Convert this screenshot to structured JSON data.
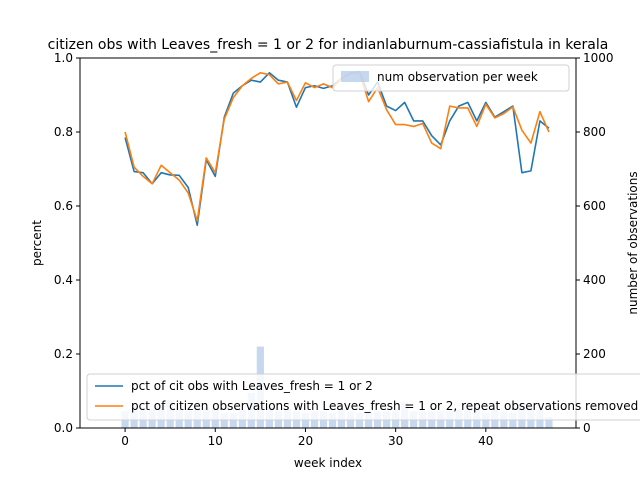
{
  "chart_data": {
    "type": "line",
    "title": "citizen obs with Leaves_fresh = 1 or 2 for indianlaburnum-cassiafistula in kerala",
    "xlabel": "week index",
    "ylabel": "percent",
    "y2label": "number of observations",
    "xlim": [
      -5,
      50
    ],
    "ylim": [
      0,
      1.0
    ],
    "y2lim": [
      0,
      1000
    ],
    "xticks": [
      0,
      10,
      20,
      30,
      40
    ],
    "yticks": [
      0.0,
      0.2,
      0.4,
      0.6,
      0.8,
      1.0
    ],
    "y2ticks": [
      0,
      200,
      400,
      600,
      800,
      1000
    ],
    "x": [
      0,
      1,
      2,
      3,
      4,
      5,
      6,
      7,
      8,
      9,
      10,
      11,
      12,
      13,
      14,
      15,
      16,
      17,
      18,
      19,
      20,
      21,
      22,
      23,
      24,
      25,
      26,
      27,
      28,
      29,
      30,
      31,
      32,
      33,
      34,
      35,
      36,
      37,
      38,
      39,
      40,
      41,
      42,
      43,
      44,
      45,
      46,
      47
    ],
    "series": [
      {
        "name": "pct of cit obs with Leaves_fresh = 1 or 2",
        "color": "#1f77b4",
        "values": [
          0.785,
          0.693,
          0.69,
          0.66,
          0.69,
          0.684,
          0.683,
          0.65,
          0.548,
          0.725,
          0.68,
          0.84,
          0.905,
          0.925,
          0.94,
          0.935,
          0.96,
          0.94,
          0.935,
          0.867,
          0.92,
          0.925,
          0.918,
          0.925,
          0.945,
          0.96,
          0.963,
          0.9,
          0.935,
          0.87,
          0.858,
          0.88,
          0.83,
          0.83,
          0.79,
          0.765,
          0.83,
          0.87,
          0.88,
          0.83,
          0.88,
          0.84,
          0.855,
          0.87,
          0.69,
          0.695,
          0.83,
          0.81
        ]
      },
      {
        "name": "pct of citizen observations with Leaves_fresh = 1 or 2, repeat observations removed",
        "color": "#ff7f0e",
        "values": [
          0.8,
          0.705,
          0.68,
          0.66,
          0.71,
          0.69,
          0.67,
          0.635,
          0.56,
          0.73,
          0.69,
          0.835,
          0.893,
          0.925,
          0.945,
          0.96,
          0.955,
          0.93,
          0.935,
          0.885,
          0.933,
          0.92,
          0.93,
          0.92,
          0.945,
          0.958,
          0.96,
          0.882,
          0.92,
          0.86,
          0.82,
          0.82,
          0.815,
          0.823,
          0.77,
          0.755,
          0.87,
          0.865,
          0.865,
          0.815,
          0.875,
          0.838,
          0.85,
          0.868,
          0.805,
          0.77,
          0.855,
          0.8
        ]
      },
      {
        "name": "num observation per week",
        "color": "#aec7e8",
        "type": "bar",
        "axis": "y2",
        "values": [
          45,
          60,
          55,
          50,
          65,
          75,
          55,
          45,
          50,
          55,
          50,
          40,
          40,
          50,
          95,
          220,
          55,
          45,
          50,
          45,
          40,
          45,
          45,
          40,
          50,
          45,
          40,
          45,
          45,
          45,
          45,
          70,
          45,
          45,
          45,
          45,
          45,
          50,
          55,
          50,
          40,
          50,
          45,
          40,
          65,
          60,
          50,
          30
        ]
      }
    ],
    "legend_upper": "upper-right",
    "legend_lower": "lower-left",
    "grid": false
  }
}
